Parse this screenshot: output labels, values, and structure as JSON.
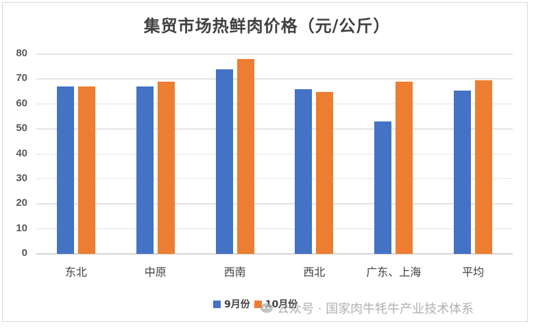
{
  "chart_data": {
    "type": "bar",
    "title": "集贸市场热鲜肉价格（元/公斤）",
    "xlabel": "",
    "ylabel": "",
    "categories": [
      "东北",
      "中原",
      "西南",
      "西北",
      "广东、上海",
      "平均"
    ],
    "series": [
      {
        "name": "9月份",
        "color": "#4472C4",
        "values": [
          67,
          67,
          74,
          66,
          53,
          65.4
        ]
      },
      {
        "name": "10月份",
        "color": "#ED7D31",
        "values": [
          67,
          69,
          78,
          65,
          69,
          69.6
        ]
      }
    ],
    "ylim": [
      0,
      80
    ],
    "yticks": [
      0,
      10,
      20,
      30,
      40,
      50,
      60,
      70,
      80
    ],
    "grid": true,
    "legend_position": "bottom"
  },
  "legend": {
    "items": [
      {
        "label": "9月份",
        "color": "#4472C4"
      },
      {
        "label": "10月份",
        "color": "#ED7D31"
      }
    ]
  },
  "watermark": {
    "text": "公众号 · 国家肉牛牦牛产业技术体系"
  }
}
